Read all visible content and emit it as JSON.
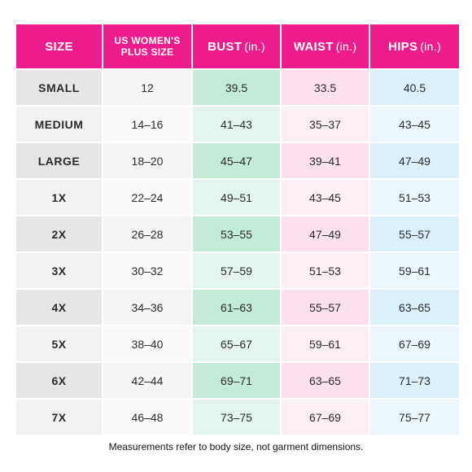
{
  "table": {
    "headers": {
      "size": "SIZE",
      "plus_line1": "US WOMEN'S",
      "plus_line2": "PLUS SIZE",
      "bust": "BUST",
      "waist": "WAIST",
      "hips": "HIPS",
      "unit": "(in.)"
    },
    "rows": [
      {
        "size": "SMALL",
        "plus": "12",
        "bust": "39.5",
        "waist": "33.5",
        "hips": "40.5"
      },
      {
        "size": "MEDIUM",
        "plus": "14–16",
        "bust": "41–43",
        "waist": "35–37",
        "hips": "43–45"
      },
      {
        "size": "LARGE",
        "plus": "18–20",
        "bust": "45–47",
        "waist": "39–41",
        "hips": "47–49"
      },
      {
        "size": "1X",
        "plus": "22–24",
        "bust": "49–51",
        "waist": "43–45",
        "hips": "51–53"
      },
      {
        "size": "2X",
        "plus": "26–28",
        "bust": "53–55",
        "waist": "47–49",
        "hips": "55–57"
      },
      {
        "size": "3X",
        "plus": "30–32",
        "bust": "57–59",
        "waist": "51–53",
        "hips": "59–61"
      },
      {
        "size": "4X",
        "plus": "34–36",
        "bust": "61–63",
        "waist": "55–57",
        "hips": "63–65"
      },
      {
        "size": "5X",
        "plus": "38–40",
        "bust": "65–67",
        "waist": "59–61",
        "hips": "67–69"
      },
      {
        "size": "6X",
        "plus": "42–44",
        "bust": "69–71",
        "waist": "63–65",
        "hips": "71–73"
      },
      {
        "size": "7X",
        "plus": "46–48",
        "bust": "73–75",
        "waist": "67–69",
        "hips": "75–77"
      }
    ]
  },
  "footnote": "Measurements refer to body size, not garment dimensions.",
  "colors": {
    "header": "#ec1c8c",
    "bust": "#c4ebd7",
    "waist": "#fbe0ee",
    "hips": "#dbf0fb"
  }
}
